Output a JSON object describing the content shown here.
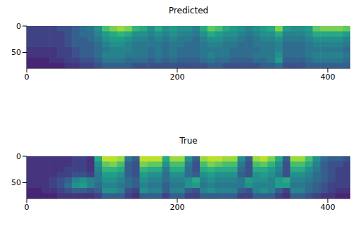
{
  "chart_data": [
    {
      "type": "heatmap",
      "title": "Predicted",
      "xlim": [
        0,
        430
      ],
      "ylim": [
        0,
        80
      ],
      "xticks": [
        0,
        200,
        400
      ],
      "yticks": [
        0,
        50
      ],
      "x_edges": [
        0,
        10,
        20,
        30,
        40,
        50,
        60,
        70,
        80,
        90,
        100,
        110,
        120,
        130,
        140,
        150,
        160,
        170,
        180,
        190,
        200,
        210,
        220,
        230,
        240,
        250,
        260,
        270,
        280,
        290,
        300,
        310,
        320,
        330,
        340,
        350,
        360,
        370,
        380,
        390,
        400,
        410,
        420,
        430
      ],
      "y_edges": [
        0,
        10,
        20,
        30,
        40,
        50,
        60,
        70,
        80
      ],
      "cells": [
        [
          0.2,
          0.2,
          0.2,
          0.2,
          0.25,
          0.25,
          0.3,
          0.35,
          0.4,
          0.5,
          0.7,
          0.8,
          0.85,
          0.8,
          0.65,
          0.6,
          0.5,
          0.6,
          0.5,
          0.55,
          0.5,
          0.5,
          0.45,
          0.6,
          0.75,
          0.7,
          0.6,
          0.55,
          0.5,
          0.45,
          0.5,
          0.55,
          0.6,
          0.8,
          0.55,
          0.5,
          0.5,
          0.55,
          0.75,
          0.8,
          0.8,
          0.8,
          0.75
        ],
        [
          0.2,
          0.2,
          0.2,
          0.2,
          0.2,
          0.25,
          0.3,
          0.35,
          0.35,
          0.45,
          0.55,
          0.6,
          0.65,
          0.6,
          0.5,
          0.5,
          0.45,
          0.5,
          0.45,
          0.5,
          0.45,
          0.45,
          0.4,
          0.5,
          0.6,
          0.55,
          0.5,
          0.5,
          0.45,
          0.4,
          0.45,
          0.5,
          0.5,
          0.6,
          0.45,
          0.45,
          0.45,
          0.5,
          0.6,
          0.6,
          0.6,
          0.6,
          0.55
        ],
        [
          0.2,
          0.2,
          0.2,
          0.2,
          0.2,
          0.25,
          0.3,
          0.3,
          0.35,
          0.4,
          0.5,
          0.55,
          0.55,
          0.5,
          0.45,
          0.45,
          0.4,
          0.45,
          0.4,
          0.45,
          0.4,
          0.4,
          0.35,
          0.45,
          0.5,
          0.5,
          0.45,
          0.45,
          0.4,
          0.35,
          0.4,
          0.45,
          0.45,
          0.5,
          0.4,
          0.4,
          0.4,
          0.45,
          0.5,
          0.5,
          0.5,
          0.5,
          0.45
        ],
        [
          0.2,
          0.2,
          0.2,
          0.2,
          0.2,
          0.25,
          0.3,
          0.3,
          0.3,
          0.35,
          0.45,
          0.5,
          0.5,
          0.45,
          0.4,
          0.4,
          0.4,
          0.4,
          0.35,
          0.4,
          0.4,
          0.35,
          0.35,
          0.4,
          0.45,
          0.45,
          0.4,
          0.4,
          0.35,
          0.35,
          0.4,
          0.4,
          0.4,
          0.45,
          0.35,
          0.35,
          0.35,
          0.4,
          0.45,
          0.45,
          0.45,
          0.45,
          0.4
        ],
        [
          0.15,
          0.15,
          0.15,
          0.15,
          0.2,
          0.2,
          0.25,
          0.3,
          0.3,
          0.35,
          0.4,
          0.45,
          0.45,
          0.45,
          0.4,
          0.4,
          0.35,
          0.4,
          0.35,
          0.4,
          0.35,
          0.35,
          0.35,
          0.4,
          0.4,
          0.4,
          0.4,
          0.35,
          0.35,
          0.35,
          0.35,
          0.4,
          0.4,
          0.45,
          0.35,
          0.35,
          0.35,
          0.4,
          0.4,
          0.4,
          0.4,
          0.4,
          0.35
        ],
        [
          0.15,
          0.15,
          0.15,
          0.15,
          0.2,
          0.2,
          0.25,
          0.3,
          0.3,
          0.35,
          0.45,
          0.45,
          0.45,
          0.4,
          0.4,
          0.4,
          0.35,
          0.4,
          0.35,
          0.4,
          0.35,
          0.35,
          0.35,
          0.4,
          0.45,
          0.4,
          0.4,
          0.35,
          0.35,
          0.35,
          0.4,
          0.4,
          0.4,
          0.5,
          0.35,
          0.35,
          0.35,
          0.4,
          0.45,
          0.45,
          0.45,
          0.45,
          0.4
        ],
        [
          0.1,
          0.1,
          0.1,
          0.15,
          0.15,
          0.2,
          0.2,
          0.25,
          0.25,
          0.3,
          0.4,
          0.4,
          0.4,
          0.35,
          0.35,
          0.35,
          0.3,
          0.35,
          0.3,
          0.35,
          0.3,
          0.3,
          0.3,
          0.35,
          0.4,
          0.35,
          0.35,
          0.3,
          0.3,
          0.3,
          0.35,
          0.35,
          0.4,
          0.55,
          0.3,
          0.3,
          0.3,
          0.35,
          0.4,
          0.4,
          0.4,
          0.4,
          0.35
        ],
        [
          0.1,
          0.1,
          0.1,
          0.1,
          0.1,
          0.15,
          0.15,
          0.2,
          0.2,
          0.25,
          0.3,
          0.3,
          0.3,
          0.3,
          0.25,
          0.25,
          0.25,
          0.25,
          0.25,
          0.25,
          0.25,
          0.25,
          0.25,
          0.25,
          0.3,
          0.3,
          0.25,
          0.25,
          0.25,
          0.25,
          0.25,
          0.3,
          0.3,
          0.35,
          0.25,
          0.25,
          0.25,
          0.3,
          0.3,
          0.3,
          0.3,
          0.3,
          0.3
        ]
      ]
    },
    {
      "type": "heatmap",
      "title": "True",
      "xlim": [
        0,
        430
      ],
      "ylim": [
        0,
        80
      ],
      "xticks": [
        0,
        200,
        400
      ],
      "yticks": [
        0,
        50
      ],
      "x_edges": [
        0,
        10,
        20,
        30,
        40,
        50,
        60,
        70,
        80,
        90,
        100,
        110,
        120,
        130,
        140,
        150,
        160,
        170,
        180,
        190,
        200,
        210,
        220,
        230,
        240,
        250,
        260,
        270,
        280,
        290,
        300,
        310,
        320,
        330,
        340,
        350,
        360,
        370,
        380,
        390,
        400,
        410,
        420,
        430
      ],
      "y_edges": [
        0,
        10,
        20,
        30,
        40,
        50,
        60,
        70,
        80
      ],
      "cells": [
        [
          0.15,
          0.15,
          0.15,
          0.15,
          0.15,
          0.15,
          0.2,
          0.2,
          0.15,
          0.6,
          0.9,
          0.9,
          0.85,
          0.4,
          0.3,
          0.9,
          0.9,
          0.9,
          0.6,
          0.85,
          0.85,
          0.5,
          0.3,
          0.85,
          0.9,
          0.9,
          0.85,
          0.85,
          0.5,
          0.3,
          0.85,
          0.9,
          0.8,
          0.6,
          0.3,
          0.85,
          0.85,
          0.7,
          0.5,
          0.35,
          0.3,
          0.3,
          0.25
        ],
        [
          0.15,
          0.15,
          0.15,
          0.15,
          0.15,
          0.15,
          0.2,
          0.2,
          0.15,
          0.5,
          0.75,
          0.8,
          0.7,
          0.3,
          0.25,
          0.8,
          0.75,
          0.75,
          0.5,
          0.7,
          0.7,
          0.4,
          0.25,
          0.7,
          0.8,
          0.75,
          0.7,
          0.7,
          0.4,
          0.25,
          0.7,
          0.75,
          0.65,
          0.5,
          0.25,
          0.7,
          0.7,
          0.6,
          0.45,
          0.3,
          0.25,
          0.25,
          0.2
        ],
        [
          0.15,
          0.15,
          0.15,
          0.15,
          0.15,
          0.2,
          0.2,
          0.2,
          0.15,
          0.45,
          0.65,
          0.65,
          0.6,
          0.3,
          0.25,
          0.65,
          0.6,
          0.6,
          0.4,
          0.6,
          0.6,
          0.35,
          0.25,
          0.6,
          0.65,
          0.6,
          0.6,
          0.6,
          0.35,
          0.25,
          0.6,
          0.6,
          0.55,
          0.45,
          0.25,
          0.6,
          0.6,
          0.5,
          0.4,
          0.3,
          0.25,
          0.2,
          0.2
        ],
        [
          0.15,
          0.15,
          0.15,
          0.15,
          0.2,
          0.2,
          0.25,
          0.25,
          0.2,
          0.4,
          0.55,
          0.55,
          0.5,
          0.3,
          0.25,
          0.55,
          0.5,
          0.5,
          0.35,
          0.5,
          0.5,
          0.35,
          0.3,
          0.5,
          0.55,
          0.5,
          0.5,
          0.5,
          0.3,
          0.25,
          0.5,
          0.55,
          0.5,
          0.4,
          0.25,
          0.5,
          0.5,
          0.45,
          0.35,
          0.3,
          0.25,
          0.2,
          0.2
        ],
        [
          0.15,
          0.15,
          0.15,
          0.2,
          0.25,
          0.3,
          0.45,
          0.5,
          0.45,
          0.4,
          0.5,
          0.5,
          0.45,
          0.35,
          0.3,
          0.5,
          0.45,
          0.45,
          0.35,
          0.45,
          0.45,
          0.5,
          0.6,
          0.45,
          0.5,
          0.45,
          0.45,
          0.45,
          0.4,
          0.55,
          0.5,
          0.5,
          0.45,
          0.55,
          0.6,
          0.45,
          0.45,
          0.4,
          0.35,
          0.3,
          0.25,
          0.2,
          0.2
        ],
        [
          0.15,
          0.15,
          0.15,
          0.2,
          0.25,
          0.35,
          0.5,
          0.55,
          0.45,
          0.35,
          0.45,
          0.45,
          0.4,
          0.35,
          0.3,
          0.45,
          0.4,
          0.4,
          0.3,
          0.4,
          0.4,
          0.5,
          0.55,
          0.4,
          0.45,
          0.4,
          0.4,
          0.4,
          0.4,
          0.5,
          0.45,
          0.45,
          0.45,
          0.55,
          0.55,
          0.4,
          0.4,
          0.35,
          0.3,
          0.25,
          0.2,
          0.2,
          0.2
        ],
        [
          0.1,
          0.1,
          0.15,
          0.15,
          0.2,
          0.25,
          0.3,
          0.3,
          0.25,
          0.3,
          0.5,
          0.5,
          0.45,
          0.25,
          0.2,
          0.5,
          0.45,
          0.45,
          0.3,
          0.45,
          0.45,
          0.3,
          0.25,
          0.45,
          0.5,
          0.45,
          0.45,
          0.45,
          0.3,
          0.25,
          0.45,
          0.5,
          0.45,
          0.3,
          0.2,
          0.45,
          0.45,
          0.35,
          0.3,
          0.25,
          0.2,
          0.15,
          0.15
        ],
        [
          0.1,
          0.1,
          0.1,
          0.1,
          0.15,
          0.15,
          0.15,
          0.15,
          0.15,
          0.2,
          0.3,
          0.3,
          0.3,
          0.2,
          0.15,
          0.3,
          0.3,
          0.3,
          0.2,
          0.3,
          0.3,
          0.2,
          0.2,
          0.3,
          0.3,
          0.3,
          0.3,
          0.3,
          0.2,
          0.2,
          0.3,
          0.3,
          0.3,
          0.2,
          0.15,
          0.3,
          0.3,
          0.25,
          0.2,
          0.15,
          0.15,
          0.1,
          0.1
        ]
      ]
    }
  ]
}
